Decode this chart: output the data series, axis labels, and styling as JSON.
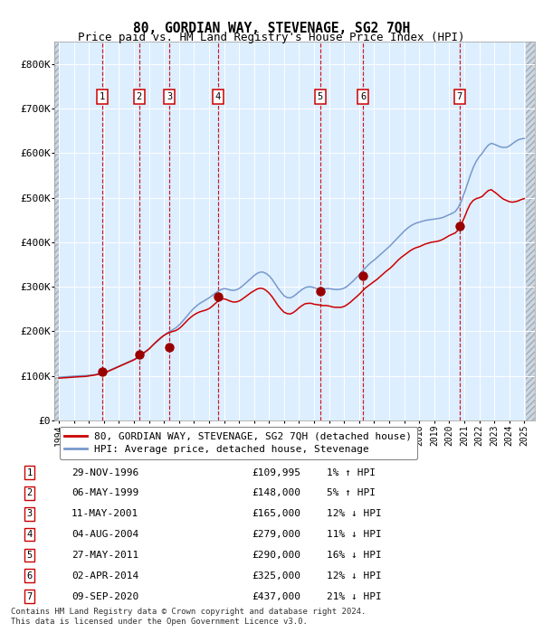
{
  "title": "80, GORDIAN WAY, STEVENAGE, SG2 7QH",
  "subtitle": "Price paid vs. HM Land Registry's House Price Index (HPI)",
  "footnote": "Contains HM Land Registry data © Crown copyright and database right 2024.\nThis data is licensed under the Open Government Licence v3.0.",
  "legend_red": "80, GORDIAN WAY, STEVENAGE, SG2 7QH (detached house)",
  "legend_blue": "HPI: Average price, detached house, Stevenage",
  "hpi_color": "#7799cc",
  "price_color": "#cc0000",
  "marker_color": "#990000",
  "background_plot": "#ddeeff",
  "background_hatch_color": "#c8d8e8",
  "grid_color": "#ffffff",
  "vline_color": "#cc0000",
  "xlim_min": 1993.7,
  "xlim_max": 2025.7,
  "ylim_min": 0,
  "ylim_max": 850000,
  "yticks": [
    0,
    100000,
    200000,
    300000,
    400000,
    500000,
    600000,
    700000,
    800000
  ],
  "ytick_labels": [
    "£0",
    "£100K",
    "£200K",
    "£300K",
    "£400K",
    "£500K",
    "£600K",
    "£700K",
    "£800K"
  ],
  "sales": [
    {
      "num": 1,
      "date": "29-NOV-1996",
      "year": 1996.91,
      "price": 109995
    },
    {
      "num": 2,
      "date": "06-MAY-1999",
      "year": 1999.35,
      "price": 148000
    },
    {
      "num": 3,
      "date": "11-MAY-2001",
      "year": 2001.36,
      "price": 165000
    },
    {
      "num": 4,
      "date": "04-AUG-2004",
      "year": 2004.59,
      "price": 279000
    },
    {
      "num": 5,
      "date": "27-MAY-2011",
      "year": 2011.4,
      "price": 290000
    },
    {
      "num": 6,
      "date": "02-APR-2014",
      "year": 2014.25,
      "price": 325000
    },
    {
      "num": 7,
      "date": "09-SEP-2020",
      "year": 2020.69,
      "price": 437000
    }
  ],
  "table_rows": [
    {
      "num": 1,
      "date": "29-NOV-1996",
      "price": "£109,995",
      "pct": "1% ↑ HPI"
    },
    {
      "num": 2,
      "date": "06-MAY-1999",
      "price": "£148,000",
      "pct": "5% ↑ HPI"
    },
    {
      "num": 3,
      "date": "11-MAY-2001",
      "price": "£165,000",
      "pct": "12% ↓ HPI"
    },
    {
      "num": 4,
      "date": "04-AUG-2004",
      "price": "£279,000",
      "pct": "11% ↓ HPI"
    },
    {
      "num": 5,
      "date": "27-MAY-2011",
      "price": "£290,000",
      "pct": "16% ↓ HPI"
    },
    {
      "num": 6,
      "date": "02-APR-2014",
      "price": "£325,000",
      "pct": "12% ↓ HPI"
    },
    {
      "num": 7,
      "date": "09-SEP-2020",
      "price": "£437,000",
      "pct": "21% ↓ HPI"
    }
  ],
  "hpi_data": [
    [
      1994.0,
      97000
    ],
    [
      1994.2,
      97500
    ],
    [
      1994.4,
      98000
    ],
    [
      1994.6,
      98500
    ],
    [
      1994.8,
      99000
    ],
    [
      1995.0,
      99500
    ],
    [
      1995.2,
      100000
    ],
    [
      1995.4,
      100200
    ],
    [
      1995.6,
      100500
    ],
    [
      1995.8,
      100800
    ],
    [
      1996.0,
      101500
    ],
    [
      1996.2,
      102000
    ],
    [
      1996.4,
      103000
    ],
    [
      1996.6,
      104500
    ],
    [
      1996.8,
      106000
    ],
    [
      1997.0,
      108000
    ],
    [
      1997.2,
      110000
    ],
    [
      1997.4,
      113000
    ],
    [
      1997.6,
      116000
    ],
    [
      1997.8,
      119000
    ],
    [
      1998.0,
      122000
    ],
    [
      1998.2,
      125000
    ],
    [
      1998.4,
      128000
    ],
    [
      1998.6,
      131000
    ],
    [
      1998.8,
      134000
    ],
    [
      1999.0,
      137000
    ],
    [
      1999.2,
      141000
    ],
    [
      1999.4,
      146000
    ],
    [
      1999.6,
      151000
    ],
    [
      1999.8,
      156000
    ],
    [
      2000.0,
      161000
    ],
    [
      2000.2,
      167000
    ],
    [
      2000.4,
      173000
    ],
    [
      2000.6,
      179000
    ],
    [
      2000.8,
      185000
    ],
    [
      2001.0,
      191000
    ],
    [
      2001.2,
      196000
    ],
    [
      2001.4,
      200000
    ],
    [
      2001.6,
      204000
    ],
    [
      2001.8,
      208000
    ],
    [
      2002.0,
      214000
    ],
    [
      2002.2,
      221000
    ],
    [
      2002.4,
      229000
    ],
    [
      2002.6,
      237000
    ],
    [
      2002.8,
      245000
    ],
    [
      2003.0,
      252000
    ],
    [
      2003.2,
      258000
    ],
    [
      2003.4,
      263000
    ],
    [
      2003.6,
      267000
    ],
    [
      2003.8,
      271000
    ],
    [
      2004.0,
      275000
    ],
    [
      2004.2,
      280000
    ],
    [
      2004.4,
      285000
    ],
    [
      2004.6,
      290000
    ],
    [
      2004.8,
      294000
    ],
    [
      2005.0,
      296000
    ],
    [
      2005.2,
      295000
    ],
    [
      2005.4,
      293000
    ],
    [
      2005.6,
      292000
    ],
    [
      2005.8,
      293000
    ],
    [
      2006.0,
      296000
    ],
    [
      2006.2,
      301000
    ],
    [
      2006.4,
      307000
    ],
    [
      2006.6,
      313000
    ],
    [
      2006.8,
      319000
    ],
    [
      2007.0,
      325000
    ],
    [
      2007.2,
      330000
    ],
    [
      2007.4,
      333000
    ],
    [
      2007.6,
      333000
    ],
    [
      2007.8,
      330000
    ],
    [
      2008.0,
      325000
    ],
    [
      2008.2,
      317000
    ],
    [
      2008.4,
      307000
    ],
    [
      2008.6,
      297000
    ],
    [
      2008.8,
      288000
    ],
    [
      2009.0,
      280000
    ],
    [
      2009.2,
      276000
    ],
    [
      2009.4,
      275000
    ],
    [
      2009.6,
      278000
    ],
    [
      2009.8,
      283000
    ],
    [
      2010.0,
      289000
    ],
    [
      2010.2,
      294000
    ],
    [
      2010.4,
      298000
    ],
    [
      2010.6,
      300000
    ],
    [
      2010.8,
      300000
    ],
    [
      2011.0,
      298000
    ],
    [
      2011.2,
      296000
    ],
    [
      2011.4,
      295000
    ],
    [
      2011.6,
      295000
    ],
    [
      2011.8,
      296000
    ],
    [
      2012.0,
      296000
    ],
    [
      2012.2,
      295000
    ],
    [
      2012.4,
      294000
    ],
    [
      2012.6,
      294000
    ],
    [
      2012.8,
      295000
    ],
    [
      2013.0,
      297000
    ],
    [
      2013.2,
      301000
    ],
    [
      2013.4,
      307000
    ],
    [
      2013.6,
      313000
    ],
    [
      2013.8,
      320000
    ],
    [
      2014.0,
      327000
    ],
    [
      2014.2,
      335000
    ],
    [
      2014.4,
      342000
    ],
    [
      2014.6,
      349000
    ],
    [
      2014.8,
      355000
    ],
    [
      2015.0,
      360000
    ],
    [
      2015.2,
      366000
    ],
    [
      2015.4,
      372000
    ],
    [
      2015.6,
      378000
    ],
    [
      2015.8,
      384000
    ],
    [
      2016.0,
      390000
    ],
    [
      2016.2,
      397000
    ],
    [
      2016.4,
      404000
    ],
    [
      2016.6,
      411000
    ],
    [
      2016.8,
      418000
    ],
    [
      2017.0,
      425000
    ],
    [
      2017.2,
      431000
    ],
    [
      2017.4,
      436000
    ],
    [
      2017.6,
      440000
    ],
    [
      2017.8,
      443000
    ],
    [
      2018.0,
      445000
    ],
    [
      2018.2,
      447000
    ],
    [
      2018.4,
      449000
    ],
    [
      2018.6,
      450000
    ],
    [
      2018.8,
      451000
    ],
    [
      2019.0,
      452000
    ],
    [
      2019.2,
      453000
    ],
    [
      2019.4,
      454000
    ],
    [
      2019.6,
      456000
    ],
    [
      2019.8,
      459000
    ],
    [
      2020.0,
      462000
    ],
    [
      2020.2,
      465000
    ],
    [
      2020.4,
      469000
    ],
    [
      2020.6,
      478000
    ],
    [
      2020.8,
      492000
    ],
    [
      2021.0,
      510000
    ],
    [
      2021.2,
      530000
    ],
    [
      2021.4,
      550000
    ],
    [
      2021.6,
      568000
    ],
    [
      2021.8,
      582000
    ],
    [
      2022.0,
      592000
    ],
    [
      2022.2,
      600000
    ],
    [
      2022.4,
      610000
    ],
    [
      2022.6,
      618000
    ],
    [
      2022.8,
      622000
    ],
    [
      2023.0,
      620000
    ],
    [
      2023.2,
      617000
    ],
    [
      2023.4,
      614000
    ],
    [
      2023.6,
      613000
    ],
    [
      2023.8,
      613000
    ],
    [
      2024.0,
      616000
    ],
    [
      2024.2,
      621000
    ],
    [
      2024.4,
      626000
    ],
    [
      2024.6,
      630000
    ],
    [
      2024.8,
      632000
    ],
    [
      2025.0,
      633000
    ]
  ],
  "price_data": [
    [
      1994.0,
      95000
    ],
    [
      1994.2,
      95500
    ],
    [
      1994.4,
      96000
    ],
    [
      1994.6,
      96500
    ],
    [
      1994.8,
      97000
    ],
    [
      1995.0,
      97500
    ],
    [
      1995.2,
      98000
    ],
    [
      1995.4,
      98300
    ],
    [
      1995.6,
      98600
    ],
    [
      1995.8,
      99000
    ],
    [
      1996.0,
      100000
    ],
    [
      1996.2,
      101000
    ],
    [
      1996.4,
      102000
    ],
    [
      1996.6,
      103500
    ],
    [
      1996.8,
      105000
    ],
    [
      1997.0,
      107000
    ],
    [
      1997.2,
      109000
    ],
    [
      1997.4,
      112000
    ],
    [
      1997.6,
      115000
    ],
    [
      1997.8,
      118000
    ],
    [
      1998.0,
      121000
    ],
    [
      1998.2,
      124000
    ],
    [
      1998.4,
      127000
    ],
    [
      1998.6,
      130000
    ],
    [
      1998.8,
      133000
    ],
    [
      1999.0,
      136000
    ],
    [
      1999.2,
      140000
    ],
    [
      1999.4,
      145000
    ],
    [
      1999.6,
      150000
    ],
    [
      1999.8,
      155000
    ],
    [
      2000.0,
      160000
    ],
    [
      2000.2,
      167000
    ],
    [
      2000.4,
      174000
    ],
    [
      2000.6,
      180000
    ],
    [
      2000.8,
      186000
    ],
    [
      2001.0,
      191000
    ],
    [
      2001.2,
      195000
    ],
    [
      2001.4,
      198000
    ],
    [
      2001.6,
      200000
    ],
    [
      2001.8,
      202000
    ],
    [
      2002.0,
      206000
    ],
    [
      2002.2,
      212000
    ],
    [
      2002.4,
      219000
    ],
    [
      2002.6,
      226000
    ],
    [
      2002.8,
      232000
    ],
    [
      2003.0,
      237000
    ],
    [
      2003.2,
      241000
    ],
    [
      2003.4,
      244000
    ],
    [
      2003.6,
      246000
    ],
    [
      2003.8,
      248000
    ],
    [
      2004.0,
      251000
    ],
    [
      2004.2,
      256000
    ],
    [
      2004.4,
      262000
    ],
    [
      2004.6,
      268000
    ],
    [
      2004.8,
      272000
    ],
    [
      2005.0,
      273000
    ],
    [
      2005.2,
      271000
    ],
    [
      2005.4,
      268000
    ],
    [
      2005.6,
      266000
    ],
    [
      2005.8,
      266000
    ],
    [
      2006.0,
      268000
    ],
    [
      2006.2,
      272000
    ],
    [
      2006.4,
      277000
    ],
    [
      2006.6,
      282000
    ],
    [
      2006.8,
      287000
    ],
    [
      2007.0,
      291000
    ],
    [
      2007.2,
      295000
    ],
    [
      2007.4,
      297000
    ],
    [
      2007.6,
      296000
    ],
    [
      2007.8,
      292000
    ],
    [
      2008.0,
      286000
    ],
    [
      2008.2,
      278000
    ],
    [
      2008.4,
      268000
    ],
    [
      2008.6,
      258000
    ],
    [
      2008.8,
      250000
    ],
    [
      2009.0,
      243000
    ],
    [
      2009.2,
      240000
    ],
    [
      2009.4,
      239000
    ],
    [
      2009.6,
      242000
    ],
    [
      2009.8,
      247000
    ],
    [
      2010.0,
      253000
    ],
    [
      2010.2,
      258000
    ],
    [
      2010.4,
      262000
    ],
    [
      2010.6,
      263000
    ],
    [
      2010.8,
      263000
    ],
    [
      2011.0,
      261000
    ],
    [
      2011.2,
      260000
    ],
    [
      2011.4,
      259000
    ],
    [
      2011.6,
      258000
    ],
    [
      2011.8,
      258000
    ],
    [
      2012.0,
      257000
    ],
    [
      2012.2,
      255000
    ],
    [
      2012.4,
      254000
    ],
    [
      2012.6,
      254000
    ],
    [
      2012.8,
      254000
    ],
    [
      2013.0,
      256000
    ],
    [
      2013.2,
      260000
    ],
    [
      2013.4,
      265000
    ],
    [
      2013.6,
      271000
    ],
    [
      2013.8,
      277000
    ],
    [
      2014.0,
      283000
    ],
    [
      2014.2,
      290000
    ],
    [
      2014.4,
      297000
    ],
    [
      2014.6,
      302000
    ],
    [
      2014.8,
      307000
    ],
    [
      2015.0,
      312000
    ],
    [
      2015.2,
      317000
    ],
    [
      2015.4,
      323000
    ],
    [
      2015.6,
      329000
    ],
    [
      2015.8,
      335000
    ],
    [
      2016.0,
      340000
    ],
    [
      2016.2,
      346000
    ],
    [
      2016.4,
      353000
    ],
    [
      2016.6,
      360000
    ],
    [
      2016.8,
      366000
    ],
    [
      2017.0,
      371000
    ],
    [
      2017.2,
      376000
    ],
    [
      2017.4,
      381000
    ],
    [
      2017.6,
      385000
    ],
    [
      2017.8,
      388000
    ],
    [
      2018.0,
      390000
    ],
    [
      2018.2,
      393000
    ],
    [
      2018.4,
      396000
    ],
    [
      2018.6,
      398000
    ],
    [
      2018.8,
      400000
    ],
    [
      2019.0,
      401000
    ],
    [
      2019.2,
      402000
    ],
    [
      2019.4,
      404000
    ],
    [
      2019.6,
      407000
    ],
    [
      2019.8,
      411000
    ],
    [
      2020.0,
      415000
    ],
    [
      2020.2,
      418000
    ],
    [
      2020.4,
      421000
    ],
    [
      2020.6,
      428000
    ],
    [
      2020.8,
      440000
    ],
    [
      2021.0,
      455000
    ],
    [
      2021.2,
      472000
    ],
    [
      2021.4,
      486000
    ],
    [
      2021.6,
      494000
    ],
    [
      2021.8,
      498000
    ],
    [
      2022.0,
      500000
    ],
    [
      2022.2,
      503000
    ],
    [
      2022.4,
      510000
    ],
    [
      2022.6,
      516000
    ],
    [
      2022.8,
      518000
    ],
    [
      2023.0,
      513000
    ],
    [
      2023.2,
      508000
    ],
    [
      2023.4,
      502000
    ],
    [
      2023.6,
      497000
    ],
    [
      2023.8,
      494000
    ],
    [
      2024.0,
      491000
    ],
    [
      2024.2,
      490000
    ],
    [
      2024.4,
      491000
    ],
    [
      2024.6,
      493000
    ],
    [
      2024.8,
      496000
    ],
    [
      2025.0,
      498000
    ]
  ]
}
